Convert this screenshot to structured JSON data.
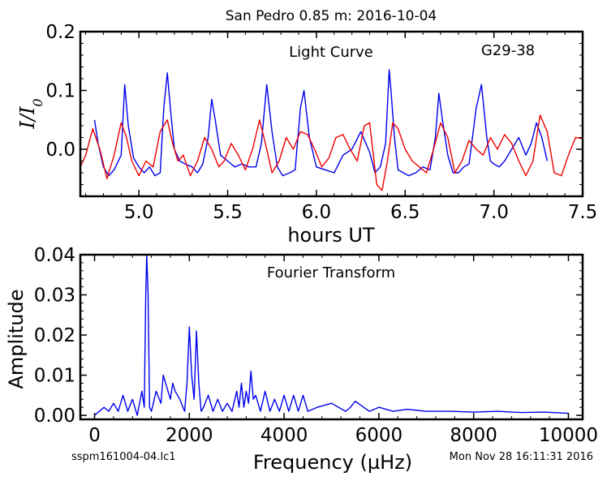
{
  "figure": {
    "title": "San Pedro 0.85 m:  2016-10-04",
    "file_label": "sspm161004-04.lc1",
    "timestamp": "Mon Nov 28 16:11:31 2016"
  },
  "colors": {
    "data": "#0000ee",
    "model": "#ee0000",
    "axes": "#000000"
  },
  "chart_data": [
    {
      "type": "line",
      "annotation": "Light Curve",
      "object_label": "G29-38",
      "xlabel": "hours UT",
      "ylabel": "I/I0",
      "xlim": [
        4.67,
        7.5
      ],
      "ylim": [
        -0.08,
        0.2
      ],
      "xticks": [
        5.0,
        5.5,
        6.0,
        6.5,
        7.0,
        7.5
      ],
      "xtick_labels": [
        "5.0",
        "5.5",
        "6.0",
        "6.5",
        "7.0",
        "7.5"
      ],
      "yticks": [
        0.0,
        0.1,
        0.2
      ],
      "ytick_labels": [
        "0.0",
        "0.1",
        "0.2"
      ],
      "grid": false,
      "series": [
        {
          "role": "data",
          "x": [
            4.75,
            4.77,
            4.8,
            4.83,
            4.86,
            4.9,
            4.92,
            4.94,
            4.97,
            5.0,
            5.03,
            5.06,
            5.09,
            5.12,
            5.14,
            5.16,
            5.18,
            5.2,
            5.23,
            5.26,
            5.3,
            5.33,
            5.36,
            5.39,
            5.41,
            5.43,
            5.46,
            5.5,
            5.54,
            5.58,
            5.62,
            5.66,
            5.69,
            5.72,
            5.75,
            5.78,
            5.81,
            5.85,
            5.88,
            5.91,
            5.93,
            5.96,
            6.0,
            6.05,
            6.1,
            6.15,
            6.2,
            6.25,
            6.3,
            6.33,
            6.36,
            6.39,
            6.41,
            6.42,
            6.44,
            6.46,
            6.49,
            6.52,
            6.56,
            6.6,
            6.64,
            6.67,
            6.69,
            6.71,
            6.74,
            6.77,
            6.8,
            6.83,
            6.86,
            6.9,
            6.93,
            6.96,
            6.98,
            7.0,
            7.03,
            7.06,
            7.1,
            7.14,
            7.18,
            7.21,
            7.24,
            7.27,
            7.3
          ],
          "y": [
            0.05,
            0.01,
            -0.03,
            -0.045,
            -0.035,
            -0.01,
            0.11,
            0.04,
            -0.015,
            -0.03,
            -0.04,
            -0.03,
            -0.045,
            -0.04,
            0.07,
            0.13,
            0.06,
            0.0,
            -0.02,
            -0.025,
            -0.03,
            -0.04,
            -0.025,
            0.02,
            0.085,
            0.05,
            -0.01,
            -0.02,
            -0.03,
            -0.025,
            -0.03,
            -0.03,
            0.01,
            0.11,
            0.03,
            -0.03,
            -0.045,
            -0.04,
            -0.035,
            0.07,
            0.1,
            0.02,
            -0.03,
            -0.035,
            -0.04,
            -0.01,
            0.0,
            0.03,
            -0.005,
            -0.04,
            -0.03,
            0.01,
            0.135,
            0.1,
            0.02,
            -0.035,
            -0.04,
            -0.045,
            -0.04,
            -0.03,
            -0.035,
            0.02,
            0.095,
            0.05,
            -0.01,
            -0.04,
            -0.04,
            -0.03,
            -0.025,
            0.07,
            0.11,
            0.02,
            -0.02,
            -0.025,
            -0.03,
            -0.02,
            0.0,
            0.02,
            -0.01,
            0.01,
            0.045,
            0.02,
            -0.02
          ]
        },
        {
          "role": "model",
          "x": [
            4.67,
            4.7,
            4.74,
            4.78,
            4.82,
            4.86,
            4.9,
            4.93,
            4.96,
            5.0,
            5.04,
            5.08,
            5.12,
            5.16,
            5.19,
            5.22,
            5.25,
            5.29,
            5.33,
            5.37,
            5.41,
            5.45,
            5.48,
            5.52,
            5.56,
            5.6,
            5.64,
            5.68,
            5.72,
            5.75,
            5.79,
            5.83,
            5.87,
            5.91,
            5.95,
            5.99,
            6.03,
            6.07,
            6.11,
            6.15,
            6.19,
            6.23,
            6.27,
            6.3,
            6.34,
            6.37,
            6.4,
            6.43,
            6.46,
            6.5,
            6.54,
            6.58,
            6.62,
            6.66,
            6.7,
            6.74,
            6.78,
            6.82,
            6.86,
            6.9,
            6.94,
            6.98,
            7.02,
            7.06,
            7.1,
            7.14,
            7.18,
            7.22,
            7.26,
            7.3,
            7.34,
            7.38,
            7.42,
            7.46,
            7.5
          ],
          "y": [
            -0.03,
            -0.01,
            0.035,
            0.0,
            -0.05,
            -0.01,
            0.045,
            0.02,
            -0.02,
            -0.045,
            -0.02,
            -0.03,
            0.03,
            0.05,
            0.01,
            -0.02,
            -0.01,
            -0.045,
            -0.02,
            0.02,
            0.0,
            -0.03,
            -0.02,
            0.01,
            -0.01,
            -0.035,
            0.0,
            0.05,
            0.0,
            -0.04,
            -0.02,
            0.02,
            0.0,
            0.03,
            0.025,
            0.0,
            -0.03,
            -0.015,
            0.02,
            0.025,
            0.0,
            -0.02,
            0.04,
            0.045,
            -0.06,
            -0.07,
            -0.02,
            0.045,
            0.035,
            0.0,
            -0.02,
            -0.03,
            -0.04,
            0.0,
            0.045,
            0.02,
            -0.04,
            -0.02,
            0.015,
            0.0,
            -0.01,
            0.02,
            0.0,
            0.025,
            0.01,
            -0.02,
            -0.045,
            -0.02,
            0.058,
            0.03,
            -0.04,
            -0.045,
            -0.01,
            0.02,
            0.018
          ]
        }
      ]
    },
    {
      "type": "line",
      "annotation": "Fourier Transform",
      "xlabel": "Frequency (µHz)",
      "ylabel": "Amplitude",
      "xlim": [
        -300,
        10300
      ],
      "ylim": [
        -0.001,
        0.04
      ],
      "xticks": [
        0,
        2000,
        4000,
        6000,
        8000,
        10000
      ],
      "xtick_labels": [
        "0",
        "2000",
        "4000",
        "6000",
        "8000",
        "10000"
      ],
      "yticks": [
        0.0,
        0.01,
        0.02,
        0.03,
        0.04
      ],
      "ytick_labels": [
        "0.00",
        "0.01",
        "0.02",
        "0.03",
        "0.04"
      ],
      "grid": false,
      "series": [
        {
          "role": "amplitude",
          "x": [
            0,
            100,
            200,
            300,
            400,
            500,
            600,
            700,
            800,
            900,
            1000,
            1050,
            1080,
            1100,
            1130,
            1160,
            1200,
            1300,
            1400,
            1450,
            1500,
            1600,
            1650,
            1700,
            1800,
            1900,
            1950,
            2000,
            2050,
            2100,
            2150,
            2200,
            2250,
            2300,
            2400,
            2500,
            2600,
            2700,
            2800,
            2900,
            3000,
            3050,
            3100,
            3150,
            3200,
            3250,
            3300,
            3350,
            3400,
            3500,
            3600,
            3700,
            3800,
            3900,
            4000,
            4100,
            4200,
            4300,
            4400,
            4500,
            4700,
            5000,
            5300,
            5400,
            5500,
            5800,
            6000,
            6300,
            6600,
            7000,
            7500,
            8000,
            8500,
            9000,
            9500,
            10000
          ],
          "y": [
            0.0,
            0.001,
            0.002,
            0.001,
            0.003,
            0.001,
            0.005,
            0.001,
            0.004,
            0.0,
            0.006,
            0.002,
            0.03,
            0.04,
            0.03,
            0.002,
            0.001,
            0.006,
            0.003,
            0.01,
            0.008,
            0.004,
            0.008,
            0.006,
            0.004,
            0.001,
            0.008,
            0.022,
            0.01,
            0.004,
            0.021,
            0.008,
            0.001,
            0.002,
            0.005,
            0.001,
            0.004,
            0.001,
            0.003,
            0.001,
            0.006,
            0.002,
            0.008,
            0.002,
            0.006,
            0.003,
            0.011,
            0.004,
            0.005,
            0.001,
            0.006,
            0.001,
            0.004,
            0.001,
            0.005,
            0.001,
            0.005,
            0.001,
            0.005,
            0.001,
            0.002,
            0.003,
            0.001,
            0.002,
            0.0035,
            0.001,
            0.002,
            0.001,
            0.0015,
            0.001,
            0.001,
            0.0008,
            0.001,
            0.0007,
            0.0008,
            0.0005
          ]
        }
      ]
    }
  ]
}
